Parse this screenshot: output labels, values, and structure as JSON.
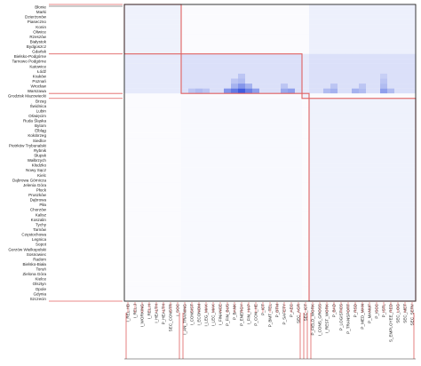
{
  "chart_data": {
    "type": "heatmap",
    "title": "",
    "xlabel": "",
    "ylabel": "",
    "colors": {
      "cell_high": "#1f3fd8",
      "cell_low": "#ffffff",
      "cluster_box": "#e06060",
      "frame": "#222222",
      "dendrogram": "#e06060"
    },
    "rows": [
      "Błonie",
      "Marki",
      "Dzierżonów",
      "Piaseczno",
      "Konin",
      "Oliwice",
      "Rzeszów",
      "Białystok",
      "Bydgoszcz",
      "Gdańsk",
      "Bielsko-Podgórne",
      "Tarnowo Podgórne",
      "Katowice",
      "Łódź",
      "Kraków",
      "Poznań",
      "Wrocław",
      "Warszawa",
      "Grodzisk Mazowiecki",
      "Brzeg",
      "Świdnica",
      "Lubin",
      "Oświęcim",
      "Ruda Śląska",
      "Bytom",
      "Elbląg",
      "Kołobrzeg",
      "Siedlce",
      "Piotrków Trybunalski",
      "Rybnik",
      "Słupsk",
      "Wałbrzych",
      "Kłodzko",
      "Nowy Sącz",
      "Kielc",
      "Dąbrowa Górnicza",
      "Jelenia Góra",
      "Płock",
      "Pruszków",
      "Dąbrowa",
      "Piła",
      "Chorzów",
      "Kalisz",
      "Koszalin",
      "Tychy",
      "Tarnów",
      "Częstochowa",
      "Legnica",
      "Sopot",
      "Gorzów Wielkopolski",
      "Sosnowiec",
      "Radom",
      "Bielsko-Biała",
      "Toruń",
      "Zielona Góra",
      "Kielce",
      "Olsztyn",
      "Opole",
      "Gdynia",
      "Szczecin"
    ],
    "row_groups": [
      {
        "label": "A",
        "start": 0,
        "end": 9
      },
      {
        "label": "B",
        "start": 10,
        "end": 17
      },
      {
        "label": "C",
        "start": 18,
        "end": 18
      },
      {
        "label": "D",
        "start": 19,
        "end": 59
      }
    ],
    "columns": [
      "I_REL.HB",
      "I_REL.J",
      "I_WORKING",
      "I_REL.H",
      "I_HEALTH",
      "P_HEALTH",
      "SEC_CONSTR",
      "I_SOC",
      "I_AN_TRAINING",
      "I_CONSIST",
      "I_ECONOM",
      "I_LEG_MAK",
      "I_LEC_MAK",
      "I_FINANCE",
      "P_FIN_BUS",
      "P_BANK",
      "P_ENERGY",
      "I_FIN_HAP",
      "P_CON_HE",
      "P_ICT",
      "P_BMT_TEL",
      "P_BTM",
      "P_SAFETY",
      "P_AEC",
      "SEC_AGR",
      "SEC_ICT",
      "P_FIELD_WORK",
      "I_CONS_GROSS",
      "I_REST_WORK",
      "P_BAD",
      "P_LOGISTICS",
      "P_TRANSPORT",
      "P_RSD",
      "P_MED_MAN",
      "P_MANUF",
      "P_ISCC",
      "P_ISTL",
      "S_EMPLOYEE_RED",
      "SEC_LOG",
      "SEC_MET",
      "SEC_SERV"
    ],
    "col_groups": [
      {
        "label": "A",
        "start": 0,
        "end": 7
      },
      {
        "label": "B",
        "start": 8,
        "end": 24
      },
      {
        "label": "C",
        "start": 25,
        "end": 25
      },
      {
        "label": "D",
        "start": 26,
        "end": 40
      }
    ],
    "value_range": [
      0,
      1
    ],
    "cells": [
      {
        "row": 17,
        "col": 14,
        "value": 0.55
      },
      {
        "row": 17,
        "col": 15,
        "value": 0.7
      },
      {
        "row": 17,
        "col": 16,
        "value": 0.85
      },
      {
        "row": 17,
        "col": 17,
        "value": 0.65
      },
      {
        "row": 17,
        "col": 18,
        "value": 0.5
      },
      {
        "row": 17,
        "col": 22,
        "value": 0.45
      },
      {
        "row": 17,
        "col": 23,
        "value": 0.5
      },
      {
        "row": 17,
        "col": 9,
        "value": 0.3
      },
      {
        "row": 17,
        "col": 10,
        "value": 0.35
      },
      {
        "row": 17,
        "col": 11,
        "value": 0.3
      },
      {
        "row": 17,
        "col": 28,
        "value": 0.35
      },
      {
        "row": 17,
        "col": 29,
        "value": 0.4
      },
      {
        "row": 17,
        "col": 32,
        "value": 0.4
      },
      {
        "row": 17,
        "col": 33,
        "value": 0.35
      },
      {
        "row": 17,
        "col": 36,
        "value": 0.5
      },
      {
        "row": 17,
        "col": 37,
        "value": 0.35
      },
      {
        "row": 16,
        "col": 15,
        "value": 0.4
      },
      {
        "row": 16,
        "col": 16,
        "value": 0.55
      },
      {
        "row": 16,
        "col": 17,
        "value": 0.4
      },
      {
        "row": 16,
        "col": 22,
        "value": 0.3
      },
      {
        "row": 16,
        "col": 29,
        "value": 0.3
      },
      {
        "row": 16,
        "col": 33,
        "value": 0.3
      },
      {
        "row": 16,
        "col": 36,
        "value": 0.35
      },
      {
        "row": 15,
        "col": 16,
        "value": 0.35
      },
      {
        "row": 15,
        "col": 15,
        "value": 0.3
      },
      {
        "row": 15,
        "col": 36,
        "value": 0.3
      },
      {
        "row": 14,
        "col": 16,
        "value": 0.3
      },
      {
        "row": 14,
        "col": 36,
        "value": 0.25
      }
    ]
  }
}
